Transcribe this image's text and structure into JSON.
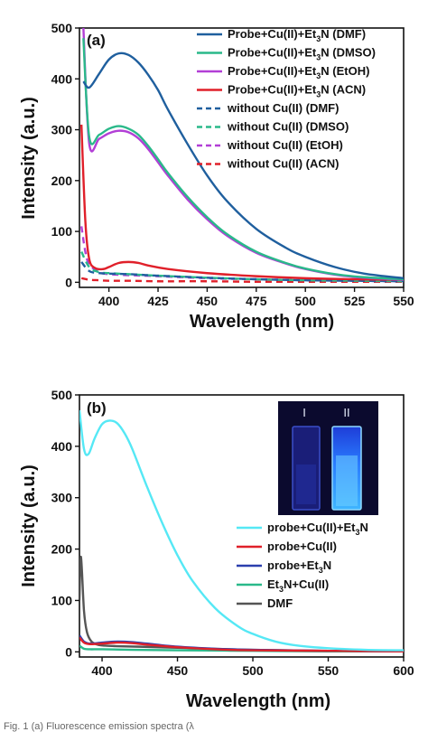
{
  "chart_data": [
    {
      "type": "line",
      "panel_label": "(a)",
      "xlabel": "Wavelength (nm)",
      "ylabel": "Intensity (a.u.)",
      "xlim": [
        385,
        550
      ],
      "ylim": [
        -10,
        500
      ],
      "xticks": [
        400,
        425,
        450,
        475,
        500,
        525,
        550
      ],
      "yticks": [
        0,
        100,
        200,
        300,
        400,
        500
      ],
      "legend_position": "top-right",
      "series": [
        {
          "name": "Probe+Cu(II)+Et3N (DMF)",
          "legend": [
            "Probe+Cu(II)+Et",
            "3",
            "N (DMF)"
          ],
          "color": "#1f5f9e",
          "dash": "solid",
          "x": [
            387,
            390,
            395,
            400,
            405,
            410,
            415,
            420,
            425,
            430,
            440,
            450,
            460,
            475,
            490,
            500,
            515,
            530,
            550
          ],
          "y": [
            395,
            383,
            410,
            438,
            450,
            447,
            432,
            408,
            378,
            340,
            272,
            210,
            160,
            105,
            68,
            50,
            30,
            17,
            8
          ]
        },
        {
          "name": "Probe+Cu(II)+Et3N (DMSO)",
          "legend": [
            "Probe+Cu(II)+Et",
            "3",
            "N (DMSO)"
          ],
          "color": "#2ab98a",
          "dash": "solid",
          "x": [
            387,
            390,
            395,
            400,
            405,
            410,
            415,
            420,
            425,
            430,
            440,
            450,
            460,
            475,
            490,
            500,
            515,
            530,
            550
          ],
          "y": [
            480,
            285,
            290,
            302,
            307,
            302,
            290,
            268,
            242,
            215,
            168,
            128,
            95,
            60,
            38,
            27,
            16,
            10,
            6
          ]
        },
        {
          "name": "Probe+Cu(II)+Et3N (EtOH)",
          "legend": [
            "Probe+Cu(II)+Et",
            "3",
            "N (EtOH)"
          ],
          "color": "#b23fd6",
          "dash": "solid",
          "x": [
            387,
            390,
            395,
            400,
            405,
            410,
            415,
            420,
            425,
            430,
            440,
            450,
            460,
            475,
            490,
            500,
            515,
            530,
            550
          ],
          "y": [
            500,
            272,
            282,
            293,
            298,
            295,
            283,
            262,
            236,
            210,
            163,
            124,
            92,
            58,
            37,
            26,
            15,
            9,
            5
          ]
        },
        {
          "name": "Probe+Cu(II)+Et3N (ACN)",
          "legend": [
            "Probe+Cu(II)+Et",
            "3",
            "N (ACN)"
          ],
          "color": "#e0202a",
          "dash": "solid",
          "x": [
            386,
            388,
            390,
            393,
            397,
            400,
            405,
            410,
            415,
            420,
            430,
            450,
            475,
            500,
            525,
            550
          ],
          "y": [
            310,
            120,
            45,
            28,
            26,
            30,
            38,
            40,
            38,
            33,
            26,
            18,
            12,
            8,
            6,
            5
          ]
        },
        {
          "name": "without Cu(II) (DMF)",
          "legend": [
            "without Cu(II) (DMF)"
          ],
          "color": "#1f5f9e",
          "dash": "dashed",
          "x": [
            386,
            390,
            395,
            400,
            410,
            425,
            450,
            475,
            500,
            525,
            550
          ],
          "y": [
            40,
            22,
            18,
            17,
            16,
            13,
            9,
            6,
            4,
            3,
            2
          ]
        },
        {
          "name": "without Cu(II) (DMSO)",
          "legend": [
            "without Cu(II) (DMSO)"
          ],
          "color": "#2ab98a",
          "dash": "dashed",
          "x": [
            386,
            390,
            395,
            400,
            410,
            425,
            450,
            475,
            500,
            525,
            550
          ],
          "y": [
            60,
            30,
            20,
            18,
            16,
            13,
            9,
            6,
            4,
            3,
            2
          ]
        },
        {
          "name": "without Cu(II) (EtOH)",
          "legend": [
            "without Cu(II) (EtOH)"
          ],
          "color": "#b23fd6",
          "dash": "dashed",
          "x": [
            386,
            388,
            390,
            395,
            400,
            410,
            425,
            450,
            475,
            500,
            525,
            550
          ],
          "y": [
            110,
            60,
            35,
            20,
            16,
            14,
            12,
            8,
            6,
            4,
            3,
            2
          ]
        },
        {
          "name": "without Cu(II) (ACN)",
          "legend": [
            "without Cu(II) (ACN)"
          ],
          "color": "#e0202a",
          "dash": "dashed",
          "x": [
            386,
            390,
            395,
            400,
            410,
            425,
            450,
            475,
            500,
            525,
            550
          ],
          "y": [
            8,
            5,
            4,
            3,
            3,
            2,
            2,
            1,
            1,
            1,
            1
          ]
        }
      ]
    },
    {
      "type": "line",
      "panel_label": "(b)",
      "xlabel": "Wavelength (nm)",
      "ylabel": "Intensity (a.u.)",
      "xlim": [
        385,
        600
      ],
      "ylim": [
        -10,
        500
      ],
      "xticks": [
        400,
        450,
        500,
        550,
        600
      ],
      "yticks": [
        0,
        100,
        200,
        300,
        400,
        500
      ],
      "legend_position": "lower-right",
      "inset": {
        "type": "photo",
        "labels": [
          "I",
          "II"
        ]
      },
      "series": [
        {
          "name": "probe+Cu(II)+Et3N",
          "legend": [
            "probe+Cu(II)+Et",
            "3",
            "N"
          ],
          "color": "#55e8f5",
          "dash": "solid",
          "x": [
            385,
            388,
            391,
            395,
            400,
            405,
            410,
            415,
            420,
            430,
            440,
            450,
            460,
            475,
            490,
            500,
            515,
            530,
            550,
            575,
            600
          ],
          "y": [
            470,
            395,
            385,
            415,
            443,
            450,
            445,
            425,
            395,
            320,
            250,
            188,
            138,
            85,
            50,
            35,
            20,
            12,
            7,
            4,
            3
          ]
        },
        {
          "name": "probe+Cu(II)",
          "legend": [
            "probe+Cu(II)"
          ],
          "color": "#e0202a",
          "dash": "solid",
          "x": [
            385,
            388,
            392,
            400,
            410,
            420,
            430,
            450,
            475,
            500,
            550,
            600
          ],
          "y": [
            28,
            18,
            15,
            16,
            18,
            17,
            14,
            9,
            5,
            3,
            2,
            1
          ]
        },
        {
          "name": "probe+Et3N",
          "legend": [
            "probe+Et",
            "3",
            "N"
          ],
          "color": "#2b3fae",
          "dash": "solid",
          "x": [
            385,
            388,
            392,
            400,
            410,
            420,
            430,
            450,
            475,
            500,
            550,
            600
          ],
          "y": [
            32,
            20,
            16,
            18,
            20,
            19,
            16,
            10,
            6,
            4,
            2,
            1
          ]
        },
        {
          "name": "Et3N+Cu(II)",
          "legend": [
            "Et",
            "3",
            "N+Cu(II)"
          ],
          "color": "#2ab98a",
          "dash": "solid",
          "x": [
            385,
            388,
            392,
            400,
            420,
            450,
            500,
            550,
            600
          ],
          "y": [
            12,
            6,
            5,
            5,
            4,
            3,
            2,
            1,
            1
          ]
        },
        {
          "name": "DMF",
          "legend": [
            "DMF"
          ],
          "color": "#555555",
          "dash": "solid",
          "x": [
            385,
            386,
            388,
            390,
            393,
            397,
            402,
            410,
            425,
            450,
            475,
            500,
            550,
            600
          ],
          "y": [
            100,
            185,
            80,
            38,
            20,
            14,
            12,
            11,
            10,
            8,
            6,
            4,
            2,
            1
          ]
        }
      ]
    }
  ],
  "caption": "Fig. 1   (a) Fluorescence emission spectra (λ"
}
